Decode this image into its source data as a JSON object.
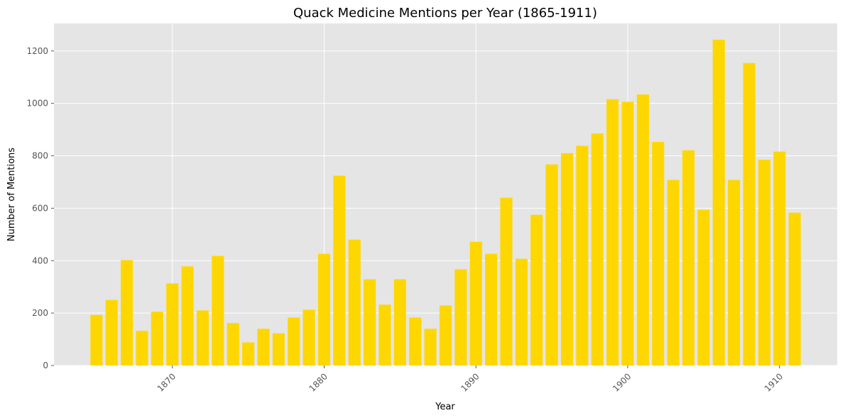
{
  "chart_data": {
    "type": "bar",
    "title": "Quack Medicine Mentions per Year (1865-1911)",
    "xlabel": "Year",
    "ylabel": "Number of Mentions",
    "x": [
      1865,
      1866,
      1867,
      1868,
      1869,
      1870,
      1871,
      1872,
      1873,
      1874,
      1875,
      1876,
      1877,
      1878,
      1879,
      1880,
      1881,
      1882,
      1883,
      1884,
      1885,
      1886,
      1887,
      1888,
      1889,
      1890,
      1891,
      1892,
      1893,
      1894,
      1895,
      1896,
      1897,
      1898,
      1899,
      1900,
      1901,
      1902,
      1903,
      1904,
      1905,
      1906,
      1907,
      1908,
      1909,
      1910,
      1911
    ],
    "values": [
      193,
      250,
      402,
      132,
      205,
      313,
      378,
      210,
      418,
      162,
      88,
      140,
      123,
      183,
      213,
      426,
      724,
      480,
      329,
      232,
      329,
      183,
      140,
      229,
      367,
      472,
      426,
      640,
      407,
      575,
      767,
      810,
      838,
      885,
      1016,
      1006,
      1034,
      853,
      708,
      821,
      594,
      1243,
      708,
      1154,
      785,
      816,
      583
    ],
    "xlim": [
      1862.2,
      1913.8
    ],
    "ylim": [
      0,
      1305
    ],
    "xticks": [
      1870,
      1880,
      1890,
      1900,
      1910
    ],
    "xtick_labels": [
      "1870",
      "1880",
      "1890",
      "1900",
      "1910"
    ],
    "yticks": [
      0,
      200,
      400,
      600,
      800,
      1000,
      1200
    ],
    "ytick_labels": [
      "0",
      "200",
      "400",
      "600",
      "800",
      "1000",
      "1200"
    ],
    "xtick_rotation": 45,
    "grid": true,
    "colors": {
      "bar": "#FFD700",
      "plot_background": "#E5E5E5",
      "grid": "#FFFFFF"
    }
  }
}
